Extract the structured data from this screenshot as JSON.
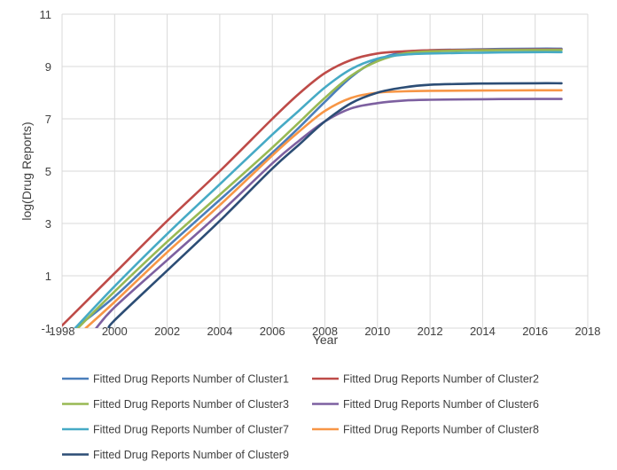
{
  "chart_data": {
    "type": "line",
    "title": "",
    "xlabel": "Year",
    "ylabel": "log(Drug Reports)",
    "xlim": [
      1998,
      2018
    ],
    "ylim": [
      -1,
      11
    ],
    "xticks": [
      1998,
      2000,
      2002,
      2004,
      2006,
      2008,
      2010,
      2012,
      2014,
      2016,
      2018
    ],
    "yticks": [
      -1,
      1,
      3,
      5,
      7,
      9,
      11
    ],
    "grid": true,
    "legend_position": "bottom",
    "series": [
      {
        "name": "Fitted Drug Reports Number of Cluster1",
        "color": "#4a7ebb",
        "x": [
          1998.5,
          2000,
          2002,
          2004,
          2006,
          2007,
          2008,
          2009,
          2010,
          2011,
          2012,
          2014,
          2016,
          2017
        ],
        "y": [
          -1.0,
          0.2,
          2.1,
          3.9,
          5.7,
          6.65,
          7.65,
          8.6,
          9.25,
          9.55,
          9.62,
          9.66,
          9.68,
          9.68
        ]
      },
      {
        "name": "Fitted Drug Reports Number of Cluster2",
        "color": "#be4b48",
        "x": [
          1998,
          2000,
          2002,
          2004,
          2006,
          2007,
          2008,
          2009,
          2010,
          2011,
          2012,
          2014,
          2016,
          2017
        ],
        "y": [
          -0.9,
          1.1,
          3.1,
          5.0,
          7.0,
          7.95,
          8.75,
          9.25,
          9.5,
          9.58,
          9.62,
          9.64,
          9.65,
          9.65
        ]
      },
      {
        "name": "Fitted Drug Reports Number of Cluster3",
        "color": "#98b954",
        "x": [
          1998.6,
          2000,
          2002,
          2004,
          2006,
          2007,
          2008,
          2009,
          2010,
          2011,
          2012,
          2014,
          2016,
          2017
        ],
        "y": [
          -1.0,
          0.4,
          2.3,
          4.1,
          5.9,
          6.85,
          7.8,
          8.65,
          9.2,
          9.5,
          9.58,
          9.62,
          9.63,
          9.63
        ]
      },
      {
        "name": "Fitted Drug Reports Number of Cluster6",
        "color": "#7d60a0",
        "x": [
          1999.3,
          2000,
          2002,
          2004,
          2006,
          2007,
          2008,
          2009,
          2010,
          2011,
          2012,
          2014,
          2016,
          2017
        ],
        "y": [
          -1.0,
          -0.2,
          1.6,
          3.4,
          5.3,
          6.15,
          6.9,
          7.4,
          7.6,
          7.7,
          7.73,
          7.75,
          7.76,
          7.76
        ]
      },
      {
        "name": "Fitted Drug Reports Number of Cluster7",
        "color": "#46aac5",
        "x": [
          1998.5,
          2000,
          2002,
          2004,
          2006,
          2007,
          2008,
          2009,
          2010,
          2011,
          2012,
          2014,
          2016,
          2017
        ],
        "y": [
          -1.0,
          0.6,
          2.6,
          4.5,
          6.4,
          7.3,
          8.2,
          8.9,
          9.3,
          9.45,
          9.5,
          9.53,
          9.55,
          9.55
        ]
      },
      {
        "name": "Fitted Drug Reports Number of Cluster8",
        "color": "#f79646",
        "x": [
          1998.9,
          2000,
          2002,
          2004,
          2006,
          2007,
          2008,
          2009,
          2010,
          2011,
          2012,
          2014,
          2016,
          2017
        ],
        "y": [
          -1.0,
          0.0,
          1.9,
          3.7,
          5.6,
          6.5,
          7.3,
          7.8,
          8.0,
          8.05,
          8.07,
          8.08,
          8.09,
          8.09
        ]
      },
      {
        "name": "Fitted Drug Reports Number of Cluster9",
        "color": "#2c4d75",
        "x": [
          1999.8,
          2000,
          2002,
          2004,
          2006,
          2007,
          2008,
          2009,
          2010,
          2011,
          2012,
          2014,
          2016,
          2017
        ],
        "y": [
          -1.0,
          -0.7,
          1.2,
          3.1,
          5.1,
          6.0,
          6.9,
          7.6,
          8.0,
          8.2,
          8.3,
          8.35,
          8.36,
          8.36
        ]
      }
    ]
  }
}
